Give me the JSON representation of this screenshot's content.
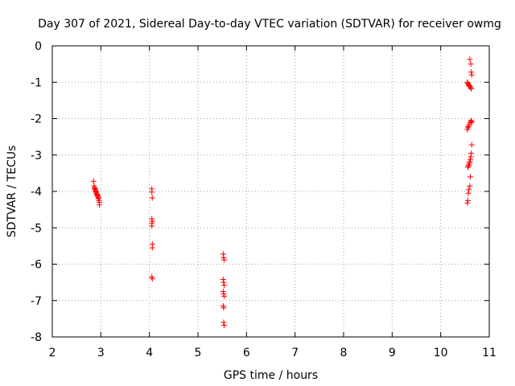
{
  "chart_data": {
    "type": "scatter",
    "title": "Day 307 of 2021, Sidereal Day-to-day VTEC variation (SDTVAR) for receiver owmg",
    "xlabel": "GPS time / hours",
    "ylabel": "SDTVAR / TECUs",
    "xlim": [
      2,
      11
    ],
    "ylim": [
      -8,
      0
    ],
    "xticks": [
      2,
      3,
      4,
      5,
      6,
      7,
      8,
      9,
      10,
      11
    ],
    "yticks": [
      0,
      -1,
      -2,
      -3,
      -4,
      -5,
      -6,
      -7,
      -8
    ],
    "grid": true,
    "marker": "plus",
    "series": [
      {
        "name": "SDTVAR",
        "color": "#ff0000",
        "points": [
          [
            2.85,
            -3.72
          ],
          [
            2.86,
            -3.85
          ],
          [
            2.87,
            -3.9
          ],
          [
            2.88,
            -3.95
          ],
          [
            2.89,
            -3.98
          ],
          [
            2.9,
            -4.0
          ],
          [
            2.91,
            -4.05
          ],
          [
            2.92,
            -4.08
          ],
          [
            2.93,
            -4.1
          ],
          [
            2.94,
            -4.15
          ],
          [
            2.95,
            -4.2
          ],
          [
            2.96,
            -4.25
          ],
          [
            2.97,
            -4.3
          ],
          [
            2.97,
            -4.37
          ],
          [
            2.88,
            -3.92
          ],
          [
            2.9,
            -4.02
          ],
          [
            2.93,
            -4.12
          ],
          [
            2.95,
            -4.18
          ],
          [
            4.05,
            -3.93
          ],
          [
            4.05,
            -4.02
          ],
          [
            4.06,
            -4.18
          ],
          [
            4.05,
            -4.75
          ],
          [
            4.06,
            -4.82
          ],
          [
            4.05,
            -4.88
          ],
          [
            4.05,
            -4.95
          ],
          [
            4.06,
            -5.45
          ],
          [
            4.06,
            -5.55
          ],
          [
            4.05,
            -6.35
          ],
          [
            4.06,
            -6.4
          ],
          [
            5.52,
            -5.72
          ],
          [
            5.53,
            -5.82
          ],
          [
            5.54,
            -5.88
          ],
          [
            5.52,
            -6.42
          ],
          [
            5.53,
            -6.5
          ],
          [
            5.54,
            -6.58
          ],
          [
            5.52,
            -6.75
          ],
          [
            5.53,
            -6.82
          ],
          [
            5.54,
            -6.88
          ],
          [
            5.52,
            -7.15
          ],
          [
            5.53,
            -7.2
          ],
          [
            5.53,
            -7.6
          ],
          [
            5.54,
            -7.68
          ],
          [
            10.6,
            -0.37
          ],
          [
            10.62,
            -0.5
          ],
          [
            10.63,
            -0.72
          ],
          [
            10.64,
            -0.8
          ],
          [
            10.55,
            -1.0
          ],
          [
            10.56,
            -1.03
          ],
          [
            10.57,
            -1.06
          ],
          [
            10.58,
            -1.08
          ],
          [
            10.59,
            -1.1
          ],
          [
            10.6,
            -1.12
          ],
          [
            10.62,
            -1.15
          ],
          [
            10.63,
            -1.18
          ],
          [
            10.62,
            -2.05
          ],
          [
            10.63,
            -2.08
          ],
          [
            10.64,
            -2.1
          ],
          [
            10.6,
            -2.12
          ],
          [
            10.58,
            -2.18
          ],
          [
            10.57,
            -2.22
          ],
          [
            10.56,
            -2.25
          ],
          [
            10.55,
            -2.3
          ],
          [
            10.64,
            -2.72
          ],
          [
            10.63,
            -2.95
          ],
          [
            10.62,
            -3.05
          ],
          [
            10.61,
            -3.12
          ],
          [
            10.6,
            -3.18
          ],
          [
            10.59,
            -3.22
          ],
          [
            10.58,
            -3.27
          ],
          [
            10.57,
            -3.3
          ],
          [
            10.56,
            -3.34
          ],
          [
            10.61,
            -3.6
          ],
          [
            10.6,
            -3.85
          ],
          [
            10.58,
            -3.95
          ],
          [
            10.57,
            -4.05
          ],
          [
            10.56,
            -4.25
          ],
          [
            10.55,
            -4.32
          ]
        ]
      }
    ]
  }
}
